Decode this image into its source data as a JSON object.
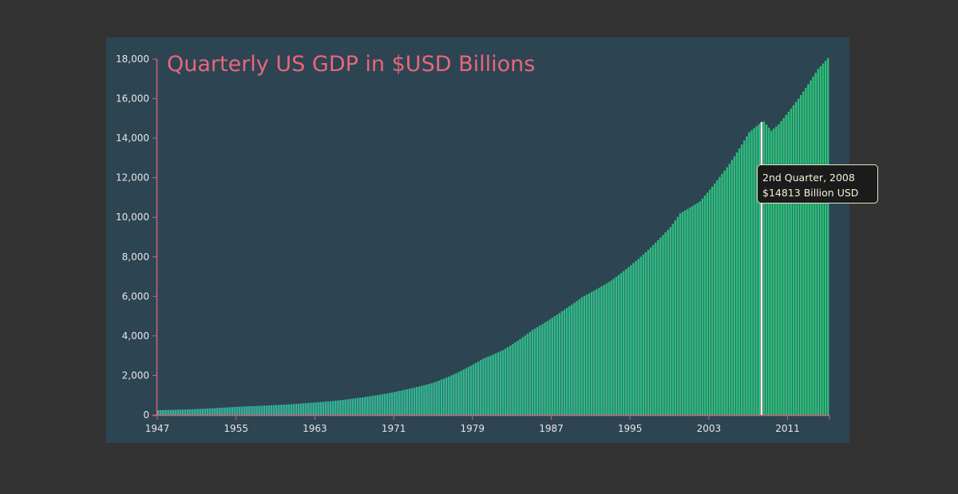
{
  "colors": {
    "page_background": "#333333",
    "panel_background": "#2d4453",
    "bar_start": "#38aea0",
    "bar_end": "#2dbd78",
    "axis": "#c9657a",
    "title": "#e8677a",
    "highlight": "#ffffff"
  },
  "chart_data": {
    "type": "bar",
    "title": "Quarterly US GDP in $USD Billions",
    "xlabel": "",
    "ylabel": "",
    "ylim": [
      0,
      18000
    ],
    "yticks": [
      "0",
      "2,000",
      "4,000",
      "6,000",
      "8,000",
      "10,000",
      "12,000",
      "14,000",
      "16,000",
      "18,000"
    ],
    "xticks": [
      "1947",
      "1955",
      "1963",
      "1971",
      "1979",
      "1987",
      "1995",
      "2003",
      "2011"
    ],
    "x_start": "1947 Q1",
    "x_end": "2015 Q1",
    "grid": false,
    "anchors": [
      {
        "year": 1947,
        "value": 243
      },
      {
        "year": 1950,
        "value": 280
      },
      {
        "year": 1955,
        "value": 415
      },
      {
        "year": 1960,
        "value": 530
      },
      {
        "year": 1965,
        "value": 720
      },
      {
        "year": 1970,
        "value": 1070
      },
      {
        "year": 1975,
        "value": 1640
      },
      {
        "year": 1978,
        "value": 2300
      },
      {
        "year": 1980,
        "value": 2850
      },
      {
        "year": 1982,
        "value": 3280
      },
      {
        "year": 1985,
        "value": 4300
      },
      {
        "year": 1988,
        "value": 5250
      },
      {
        "year": 1990,
        "value": 5950
      },
      {
        "year": 1993,
        "value": 6800
      },
      {
        "year": 1996,
        "value": 8000
      },
      {
        "year": 1999,
        "value": 9500
      },
      {
        "year": 2000,
        "value": 10200
      },
      {
        "year": 2002,
        "value": 10800
      },
      {
        "year": 2005,
        "value": 12700
      },
      {
        "year": 2007,
        "value": 14300
      },
      {
        "year": 2008.25,
        "value": 14813
      },
      {
        "year": 2008.5,
        "value": 14850
      },
      {
        "year": 2009.25,
        "value": 14380
      },
      {
        "year": 2010,
        "value": 14700
      },
      {
        "year": 2012,
        "value": 16000
      },
      {
        "year": 2014,
        "value": 17500
      },
      {
        "year": 2015,
        "value": 18050
      }
    ],
    "highlight": {
      "quarter": "2008 Q2",
      "value": 14813
    }
  },
  "tooltip": {
    "line1": "2nd Quarter, 2008",
    "line2": "$14813 Billion USD"
  }
}
